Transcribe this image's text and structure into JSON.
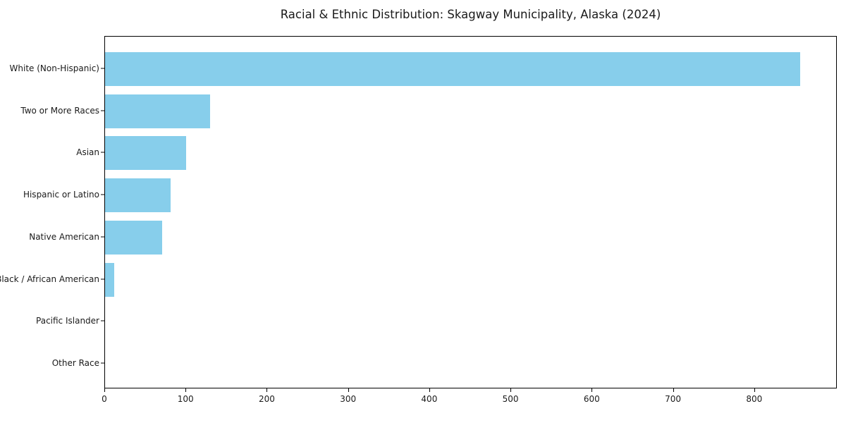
{
  "chart_data": {
    "type": "bar",
    "orientation": "horizontal",
    "title": "Racial & Ethnic Distribution: Skagway Municipality, Alaska (2024)",
    "categories": [
      "White (Non-Hispanic)",
      "Two or More Races",
      "Asian",
      "Hispanic or Latino",
      "Native American",
      "Black / African American",
      "Pacific Islander",
      "Other Race"
    ],
    "values": [
      856,
      129,
      100,
      81,
      70,
      11,
      0,
      0
    ],
    "xlabel": "",
    "ylabel": "",
    "xlim": [
      0,
      900
    ],
    "xticks": [
      0,
      100,
      200,
      300,
      400,
      500,
      600,
      700,
      800
    ],
    "grid": false,
    "legend": "none",
    "bar_color": "#87CEEB",
    "spine_color": "#000000",
    "text_color": "#1a1a1a",
    "background_color": "#ffffff"
  }
}
